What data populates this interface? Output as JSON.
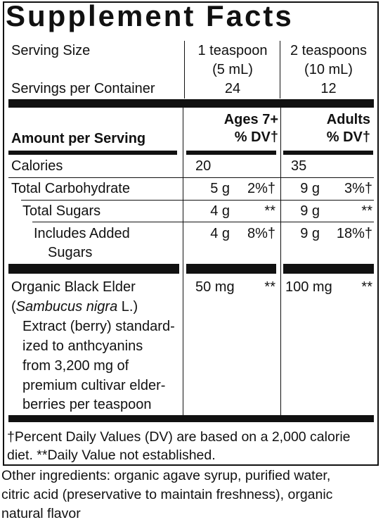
{
  "title": "Supplement Facts",
  "serving": {
    "size_label": "Serving Size",
    "col1_line1": "1 teaspoon",
    "col1_line2": "(5 mL)",
    "col2_line1": "2 teaspoons",
    "col2_line2": "(10 mL)",
    "servings_label": "Servings per Container",
    "servings_col1": "24",
    "servings_col2": "12"
  },
  "header": {
    "amount_label": "Amount per Serving",
    "col1_line1": "Ages 7+",
    "col1_line2": "% DV†",
    "col2_line1": "Adults",
    "col2_line2": "% DV†"
  },
  "rows": [
    {
      "name": "Calories",
      "amt1": "20",
      "dv1": "",
      "amt2": "35",
      "dv2": ""
    },
    {
      "name": "Total Carbohydrate",
      "amt1": "5 g",
      "dv1": "2%†",
      "amt2": "9 g",
      "dv2": "3%†"
    },
    {
      "name": "Total Sugars",
      "amt1": "4 g",
      "dv1": "**",
      "amt2": "9 g",
      "dv2": "**"
    },
    {
      "name_line1": "Includes Added",
      "name_line2": "Sugars",
      "amt1": "4 g",
      "dv1": "8%†",
      "amt2": "9 g",
      "dv2": "18%†"
    }
  ],
  "elder": {
    "line1": "Organic Black Elder",
    "line2_open": "(",
    "line2_italic": "Sambucus nigra",
    "line2_close": " L.)",
    "line3": "Extract (berry) standard-",
    "line4": "ized to anthcyanins",
    "line5": "from 3,200 mg of",
    "line6": "premium cultivar elder-",
    "line7": "berries per teaspoon",
    "amt1": "50 mg",
    "dv1": "**",
    "amt2": "100 mg",
    "dv2": "**"
  },
  "footnote": {
    "line1": "†Percent Daily Values (DV) are based on a 2,000 calorie",
    "line2": "diet. **Daily Value not established."
  },
  "other_ingredients": {
    "line1": "Other ingredients: organic agave syrup, purified water,",
    "line2": "citric acid (preservative to maintain freshness), organic",
    "line3": "natural flavor"
  }
}
